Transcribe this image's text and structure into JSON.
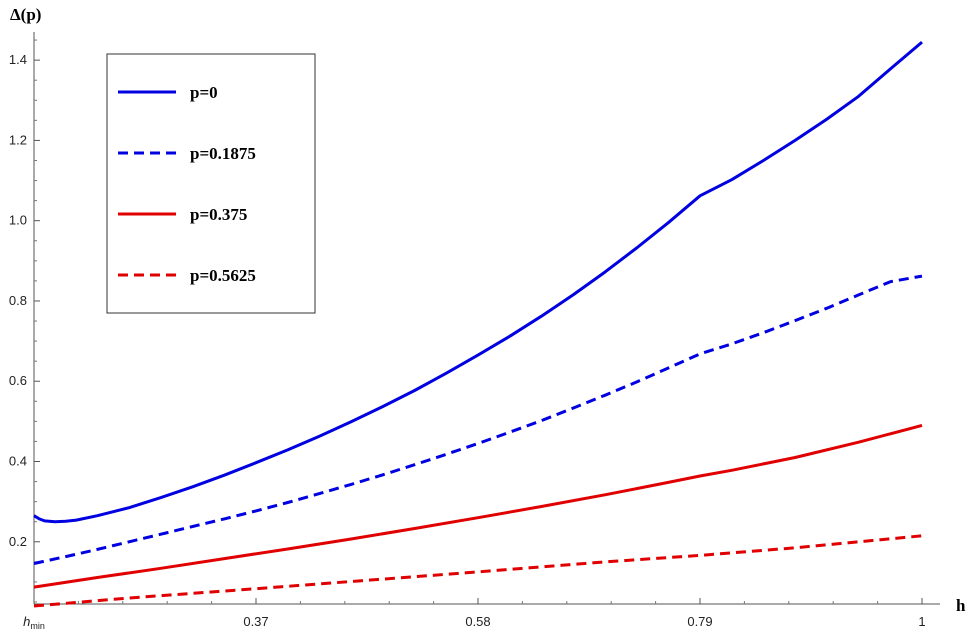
{
  "chart_data": {
    "type": "line",
    "xlabel": "h",
    "ylabel": "Δ(p)",
    "xlim": [
      0.16,
      1.0
    ],
    "ylim": [
      0.045,
      1.5
    ],
    "x_ticks": [
      {
        "value": 0.16,
        "label_main": "h",
        "label_sub": "min"
      },
      {
        "value": 0.37,
        "label_main": "0.37",
        "label_sub": ""
      },
      {
        "value": 0.58,
        "label_main": "0.58",
        "label_sub": ""
      },
      {
        "value": 0.79,
        "label_main": "0.79",
        "label_sub": ""
      },
      {
        "value": 1.0,
        "label_main": "1",
        "label_sub": ""
      }
    ],
    "y_ticks": [
      {
        "value": 0.2,
        "label": "0.2"
      },
      {
        "value": 0.4,
        "label": "0.4"
      },
      {
        "value": 0.6,
        "label": "0.6"
      },
      {
        "value": 0.8,
        "label": "0.8"
      },
      {
        "value": 1.0,
        "label": "1.0"
      },
      {
        "value": 1.2,
        "label": "1.2"
      },
      {
        "value": 1.4,
        "label": "1.4"
      }
    ],
    "legend_placement": "top-left",
    "grid": false,
    "series": [
      {
        "name": "p=0",
        "color": "#0000e0",
        "dashed": false,
        "x": [
          0.16,
          0.165,
          0.17,
          0.18,
          0.19,
          0.2,
          0.22,
          0.25,
          0.28,
          0.31,
          0.34,
          0.37,
          0.4,
          0.43,
          0.46,
          0.49,
          0.52,
          0.55,
          0.58,
          0.61,
          0.64,
          0.67,
          0.7,
          0.73,
          0.76,
          0.79,
          0.82,
          0.85,
          0.88,
          0.91,
          0.94,
          0.97,
          1.0
        ],
        "y": [
          0.265,
          0.257,
          0.252,
          0.25,
          0.251,
          0.254,
          0.265,
          0.285,
          0.31,
          0.337,
          0.366,
          0.397,
          0.429,
          0.463,
          0.499,
          0.537,
          0.577,
          0.62,
          0.665,
          0.712,
          0.762,
          0.815,
          0.872,
          0.932,
          0.995,
          1.062,
          1.102,
          1.15,
          1.2,
          1.253,
          1.31,
          1.378,
          1.445
        ]
      },
      {
        "name": "p=0.1875",
        "color": "#0000e0",
        "dashed": true,
        "x": [
          0.16,
          0.19,
          0.22,
          0.25,
          0.28,
          0.31,
          0.34,
          0.37,
          0.4,
          0.43,
          0.46,
          0.49,
          0.52,
          0.55,
          0.58,
          0.61,
          0.64,
          0.67,
          0.7,
          0.73,
          0.76,
          0.79,
          0.82,
          0.85,
          0.88,
          0.91,
          0.94,
          0.97,
          1.0
        ],
        "y": [
          0.146,
          0.163,
          0.181,
          0.2,
          0.219,
          0.238,
          0.257,
          0.277,
          0.298,
          0.32,
          0.343,
          0.367,
          0.392,
          0.418,
          0.445,
          0.473,
          0.502,
          0.533,
          0.565,
          0.598,
          0.633,
          0.668,
          0.693,
          0.721,
          0.751,
          0.782,
          0.815,
          0.848,
          0.862
        ]
      },
      {
        "name": "p=0.375",
        "color": "#e00000",
        "dashed": false,
        "x": [
          0.16,
          0.22,
          0.28,
          0.34,
          0.4,
          0.46,
          0.52,
          0.58,
          0.64,
          0.7,
          0.76,
          0.79,
          0.82,
          0.88,
          0.94,
          1.0
        ],
        "y": [
          0.087,
          0.111,
          0.134,
          0.158,
          0.182,
          0.207,
          0.233,
          0.26,
          0.288,
          0.317,
          0.348,
          0.364,
          0.378,
          0.41,
          0.448,
          0.49
        ]
      },
      {
        "name": "p=0.5625",
        "color": "#e00000",
        "dashed": true,
        "x": [
          0.16,
          0.25,
          0.37,
          0.49,
          0.58,
          0.7,
          0.79,
          0.88,
          1.0
        ],
        "y": [
          0.04,
          0.06,
          0.083,
          0.107,
          0.125,
          0.15,
          0.166,
          0.185,
          0.215
        ]
      }
    ]
  }
}
